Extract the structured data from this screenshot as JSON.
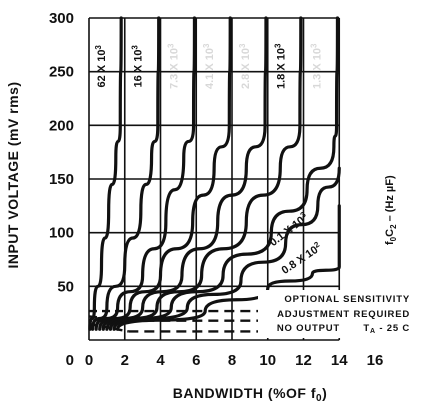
{
  "chart_data": {
    "type": "line",
    "xlabel": "BANDWIDTH (%OF f",
    "xlabel_sub": "0",
    "xlabel_close": ")",
    "ylabel": "INPUT VOLTAGE (mV rms)",
    "xlim": [
      0,
      16
    ],
    "ylim": [
      0,
      300
    ],
    "x_ticks": [
      "0",
      "2",
      "4",
      "6",
      "8",
      "10",
      "12",
      "14",
      "16"
    ],
    "y_ticks": [
      "0",
      "50",
      "100",
      "150",
      "200",
      "250",
      "300"
    ],
    "grid": true,
    "parameter_label": "f",
    "parameter_label_sub1": "0",
    "parameter_label_mid": "C",
    "parameter_label_sub2": "2",
    "parameter_label_unit": " – (Hz µF)",
    "series": [
      {
        "name": "62 X 10",
        "exp": "3",
        "faded": false,
        "points": [
          [
            0.05,
            10
          ],
          [
            0.3,
            30
          ],
          [
            0.7,
            70
          ],
          [
            1.1,
            120
          ],
          [
            1.5,
            170
          ],
          [
            1.75,
            200
          ],
          [
            1.8,
            300
          ]
        ]
      },
      {
        "name": "16 X 10",
        "exp": "3",
        "faded": false,
        "points": [
          [
            0.2,
            10
          ],
          [
            1.0,
            30
          ],
          [
            2.0,
            70
          ],
          [
            2.9,
            120
          ],
          [
            3.5,
            170
          ],
          [
            3.85,
            200
          ],
          [
            3.9,
            300
          ]
        ]
      },
      {
        "name": "7.3 X 10",
        "exp": "3",
        "faded": true,
        "points": [
          [
            0.4,
            10
          ],
          [
            1.6,
            30
          ],
          [
            3.0,
            60
          ],
          [
            4.3,
            110
          ],
          [
            5.3,
            170
          ],
          [
            5.85,
            200
          ],
          [
            5.9,
            300
          ]
        ]
      },
      {
        "name": "4.1 X 10",
        "exp": "3",
        "faded": true,
        "points": [
          [
            0.6,
            10
          ],
          [
            2.3,
            30
          ],
          [
            4.0,
            60
          ],
          [
            5.8,
            110
          ],
          [
            7.0,
            160
          ],
          [
            7.85,
            200
          ],
          [
            7.9,
            300
          ]
        ]
      },
      {
        "name": "2.8 X 10",
        "exp": "3",
        "faded": true,
        "points": [
          [
            0.8,
            10
          ],
          [
            3.0,
            30
          ],
          [
            5.2,
            60
          ],
          [
            7.2,
            110
          ],
          [
            8.8,
            160
          ],
          [
            9.85,
            200
          ],
          [
            9.9,
            300
          ]
        ]
      },
      {
        "name": "1.8 X 10",
        "exp": "3",
        "faded": false,
        "points": [
          [
            1.0,
            10
          ],
          [
            3.8,
            30
          ],
          [
            6.3,
            60
          ],
          [
            8.8,
            110
          ],
          [
            10.7,
            160
          ],
          [
            11.8,
            200
          ],
          [
            11.85,
            300
          ]
        ]
      },
      {
        "name": "1.3 X 10",
        "exp": "3",
        "faded": true,
        "points": [
          [
            1.2,
            10
          ],
          [
            4.6,
            30
          ],
          [
            7.5,
            60
          ],
          [
            10.2,
            100
          ],
          [
            12.2,
            140
          ],
          [
            13.7,
            180
          ],
          [
            13.85,
            200
          ],
          [
            13.9,
            300
          ]
        ]
      },
      {
        "name": "0.1 X 10",
        "exp": "3",
        "faded": false,
        "points": [
          [
            1.4,
            10
          ],
          [
            5.5,
            30
          ],
          [
            8.5,
            55
          ],
          [
            11.0,
            90
          ],
          [
            12.8,
            125
          ],
          [
            14.0,
            160
          ]
        ]
      },
      {
        "name": "0.8 X 10",
        "exp": "2",
        "faded": false,
        "points": [
          [
            1.6,
            10
          ],
          [
            6.5,
            27
          ],
          [
            10.0,
            48
          ],
          [
            12.5,
            62
          ],
          [
            14.0,
            68
          ],
          [
            14.0,
            125
          ]
        ]
      }
    ],
    "annotations": {
      "optional_sensitivity": "OPTIONAL SENSITIVITY",
      "adjustment_required": "ADJUSTMENT REQUIRED",
      "no_output": "NO OUTPUT",
      "temperature": "T",
      "temperature_sub": "A",
      "temperature_value": " - 25 C"
    },
    "dashed_lines": [
      {
        "name": "optional-sensitivity",
        "y_left": 27,
        "y_right": 27
      },
      {
        "name": "adjustment-required",
        "y_left": 22,
        "y_right": 18
      },
      {
        "name": "no-output",
        "y_left": 15,
        "y_right": 8
      }
    ]
  }
}
